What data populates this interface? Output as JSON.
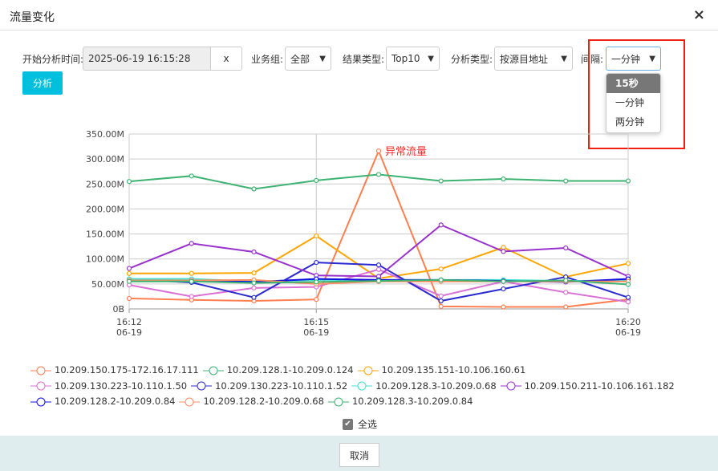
{
  "dialog": {
    "title": "流量变化",
    "close_icon": "×"
  },
  "form": {
    "start_time_label": "开始分析时间:",
    "start_time_value": "2025-06-19 16:15:28",
    "clear_label": "x",
    "group_label": "业务组:",
    "group_value": "全部",
    "result_type_label": "结果类型:",
    "result_type_value": "Top10",
    "analysis_type_label": "分析类型:",
    "analysis_type_value": "按源目地址",
    "interval_label": "间隔:",
    "interval_value": "一分钟",
    "interval_options": [
      "15秒",
      "一分钟",
      "两分钟"
    ],
    "analyze_button": "分析"
  },
  "chart_data": {
    "type": "line",
    "x": [
      "16:12",
      "16:13",
      "16:14",
      "16:15",
      "16:16",
      "16:17",
      "16:18",
      "16:19",
      "16:20"
    ],
    "x_tick_labels": [
      {
        "time": "16:12",
        "date": "06-19"
      },
      {
        "time": "16:15",
        "date": "06-19"
      },
      {
        "time": "16:20",
        "date": "06-19"
      }
    ],
    "y_tick_labels": [
      "0B",
      "50.00M",
      "100.00M",
      "150.00M",
      "200.00M",
      "250.00M",
      "300.00M",
      "350.00M"
    ],
    "ylim": [
      0,
      350
    ],
    "unit": "M",
    "grid": true,
    "legend": "bottom",
    "annotation": {
      "text": "异常流量",
      "x": "16:16",
      "color": "#ff2a2a"
    },
    "series": [
      {
        "name": "10.209.150.175-172.16.17.111",
        "color": "#ff7f50",
        "values": [
          21,
          18,
          16,
          19,
          316,
          5,
          4,
          4,
          19
        ]
      },
      {
        "name": "10.209.128.1-10.209.0.124",
        "color": "#3cb371",
        "values": [
          255,
          266,
          240,
          257,
          269,
          256,
          260,
          256,
          256
        ]
      },
      {
        "name": "10.209.135.151-10.106.160.61",
        "color": "#ffa500",
        "values": [
          71,
          71,
          72,
          146,
          61,
          80,
          123,
          64,
          91
        ]
      },
      {
        "name": "10.209.130.223-10.110.1.50",
        "color": "#da70d6",
        "values": [
          48,
          25,
          42,
          44,
          79,
          26,
          55,
          33,
          14
        ]
      },
      {
        "name": "10.209.130.223-10.110.1.52",
        "color": "#2b2bd0",
        "values": [
          59,
          53,
          23,
          93,
          88,
          16,
          40,
          64,
          23
        ]
      },
      {
        "name": "10.209.128.3-10.209.0.68",
        "color": "#40e0d0",
        "values": [
          60,
          60,
          55,
          58,
          58,
          58,
          58,
          56,
          57
        ]
      },
      {
        "name": "10.209.150.211-10.106.161.182",
        "color": "#9932cc",
        "values": [
          81,
          131,
          114,
          67,
          65,
          168,
          115,
          122,
          65
        ]
      },
      {
        "name": "10.209.128.2-10.209.0.84",
        "color": "#1010e0",
        "values": [
          57,
          57,
          54,
          60,
          58,
          58,
          56,
          54,
          60
        ]
      },
      {
        "name": "10.209.128.2-10.209.0.68",
        "color": "#ff8c60",
        "values": [
          57,
          57,
          58,
          50,
          55,
          55,
          55,
          55,
          55
        ]
      },
      {
        "name": "10.209.128.3-10.209.0.84",
        "color": "#3cb371",
        "values": [
          55,
          55,
          52,
          54,
          56,
          58,
          55,
          57,
          49
        ]
      }
    ]
  },
  "select_all": {
    "label": "全选",
    "checked": true
  },
  "footer": {
    "cancel_button": "取消"
  }
}
